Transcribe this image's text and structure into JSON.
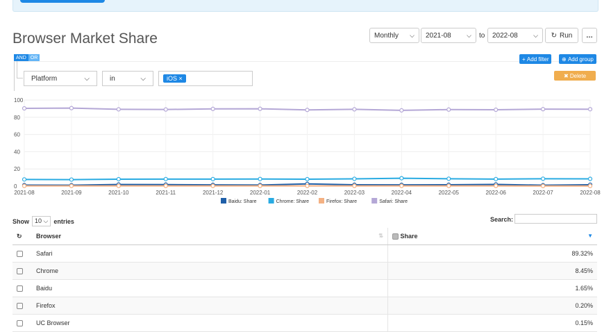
{
  "page": {
    "title": "Browser Market Share"
  },
  "toolbar": {
    "interval": "Monthly",
    "from": "2021-08",
    "to_label": "to",
    "to": "2022-08",
    "run_label": "Run",
    "more_label": "…"
  },
  "filters": {
    "and_label": "AND",
    "or_label": "OR",
    "add_filter_label": "Add filter",
    "add_group_label": "Add group",
    "delete_label": "Delete",
    "field": "Platform",
    "operator": "in",
    "tag": "iOS"
  },
  "chart_data": {
    "type": "line",
    "x": [
      "2021-08",
      "2021-09",
      "2021-10",
      "2021-11",
      "2021-12",
      "2022-01",
      "2022-02",
      "2022-03",
      "2022-04",
      "2022-05",
      "2022-06",
      "2022-07",
      "2022-08"
    ],
    "ylim": [
      0,
      100
    ],
    "yticks": [
      0,
      20,
      40,
      60,
      80,
      100
    ],
    "grid": true,
    "legend": "bottom",
    "series": [
      {
        "name": "Baidu: Share",
        "color": "#1f5fa8",
        "values": [
          1.2,
          1.1,
          1.9,
          1.8,
          1.5,
          1.3,
          2.6,
          1.6,
          1.5,
          1.6,
          2.0,
          1.1,
          1.65
        ]
      },
      {
        "name": "Chrome: Share",
        "color": "#29abe2",
        "values": [
          7.8,
          7.6,
          8.1,
          8.2,
          8.2,
          8.3,
          8.1,
          8.5,
          9.2,
          8.6,
          8.2,
          8.6,
          8.45
        ]
      },
      {
        "name": "Firefox: Share",
        "color": "#f4b183",
        "values": [
          0.3,
          0.3,
          0.3,
          0.3,
          0.3,
          0.3,
          0.3,
          0.3,
          0.3,
          0.3,
          0.3,
          0.2,
          0.2
        ]
      },
      {
        "name": "Safari: Share",
        "color": "#b4a7d6",
        "values": [
          90.3,
          90.6,
          89.2,
          89.0,
          89.7,
          89.8,
          88.5,
          89.2,
          88.0,
          88.9,
          88.7,
          89.4,
          89.32
        ]
      }
    ]
  },
  "table": {
    "show_label": "Show",
    "length": "10",
    "entries_label": "entries",
    "search_label": "Search:",
    "col_browser": "Browser",
    "col_share": "Share",
    "rows": [
      {
        "browser": "Safari",
        "share": "89.32%"
      },
      {
        "browser": "Chrome",
        "share": "8.45%"
      },
      {
        "browser": "Baidu",
        "share": "1.65%"
      },
      {
        "browser": "Firefox",
        "share": "0.20%"
      },
      {
        "browser": "UC Browser",
        "share": "0.15%"
      }
    ]
  }
}
